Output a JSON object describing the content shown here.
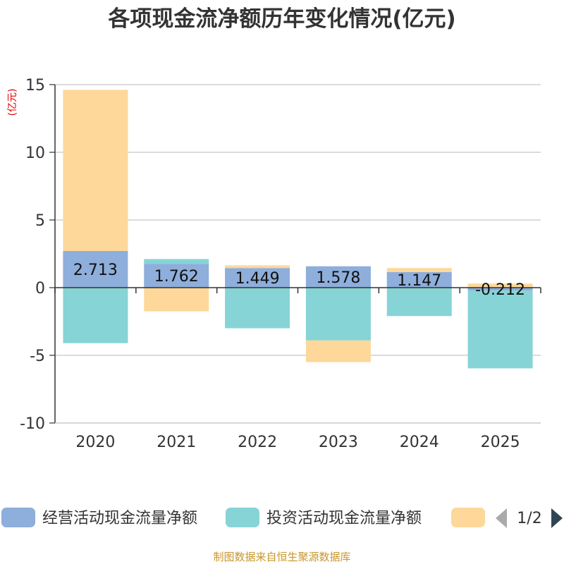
{
  "chart_data": {
    "type": "bar",
    "stacked": true,
    "title": "各项现金流净额历年变化情况(亿元)",
    "ylabel": "(亿元)",
    "ylim": [
      -10,
      15
    ],
    "yticks": [
      15,
      10,
      5,
      0,
      -5,
      -10
    ],
    "categories": [
      "2020",
      "2021",
      "2022",
      "2023",
      "2024",
      "2025"
    ],
    "series": [
      {
        "name": "经营活动现金流量净额",
        "color": "#8eaedb",
        "values": [
          2.713,
          1.762,
          1.449,
          1.578,
          1.147,
          -0.212
        ],
        "labels": [
          "2.713",
          "1.762",
          "1.449",
          "1.578",
          "1.147",
          "-0.212"
        ]
      },
      {
        "name": "投资活动现金流量净额",
        "color": "#86d4d6",
        "values": [
          -4.1,
          0.35,
          -3.0,
          -3.9,
          -2.1,
          -5.75
        ]
      },
      {
        "name": "",
        "color": "#fdd89a",
        "values": [
          11.9,
          -1.75,
          0.2,
          -1.6,
          0.3,
          0.3
        ]
      }
    ],
    "legend_page": "1/2",
    "source": "制图数据来自恒生聚源数据库"
  }
}
